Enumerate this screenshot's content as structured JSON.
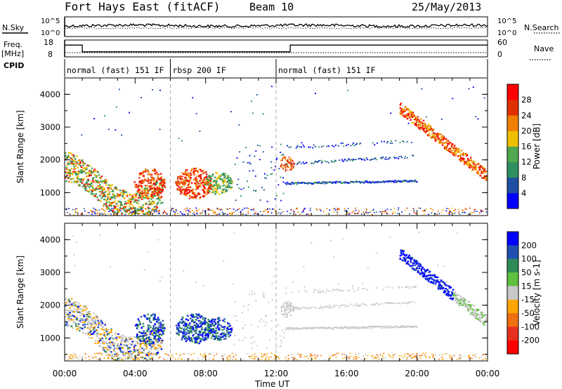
{
  "header": {
    "station": "Fort Hays East (fitACF)",
    "beam": "Beam 10",
    "date": "25/May/2013"
  },
  "strip": {
    "nsky_label": "N.Sky",
    "nsearch_label": "N.Search",
    "freq_label": "Freq.",
    "freq_unit": "[MHz]",
    "nave_label": "Nave",
    "cpid_label": "CPID",
    "nsky_ticks": [
      "10^5",
      "10^0"
    ],
    "nsearch_ticks": [
      "10^5",
      "10^0"
    ],
    "freq_ticks": [
      "18",
      "8"
    ],
    "nave_ticks": [
      "60",
      "0"
    ],
    "cpid_segments": [
      {
        "label": "normal (fast) 151 IF",
        "start_h": 0,
        "end_h": 6
      },
      {
        "label": "rbsp 200 IF",
        "start_h": 6,
        "end_h": 12
      },
      {
        "label": "normal (fast) 151 IF",
        "start_h": 12,
        "end_h": 24
      }
    ],
    "freq_steps_h": [
      0,
      1.0,
      12.8,
      24
    ],
    "freq_levels_mhz": [
      15,
      11,
      15
    ]
  },
  "chart_data": [
    {
      "type": "heatmap",
      "name": "power",
      "ylabel": "Slant Range [km]",
      "yticks": [
        "1000",
        "2000",
        "3000",
        "4000"
      ],
      "colorbar_label": "Power [dB]",
      "colorbar_ticks": [
        "4",
        "8",
        "12",
        "16",
        "20",
        "24",
        "28"
      ],
      "colors": [
        "#0000ff",
        "#1e4fa0",
        "#2f8f60",
        "#4fa84f",
        "#f0c000",
        "#f08000",
        "#e03000",
        "#ff0000"
      ]
    },
    {
      "type": "heatmap",
      "name": "velocity",
      "ylabel": "Slant Range [km]",
      "yticks": [
        "1000",
        "2000",
        "3000",
        "4000"
      ],
      "colorbar_label": "Velocity [m s-1]",
      "colorbar_ticks": [
        "200",
        "100",
        "50",
        "15",
        "-15",
        "-50",
        "-100",
        "-200"
      ],
      "colors": [
        "#0000ff",
        "#1f4fb0",
        "#2e8b57",
        "#5fc03f",
        "#c8c8c8",
        "#ffa500",
        "#f07010",
        "#e83020",
        "#ff0000"
      ]
    }
  ],
  "xaxis": {
    "title": "Time UT",
    "ticks": [
      "00:00",
      "04:00",
      "08:00",
      "12:00",
      "16:00",
      "20:00",
      "00:00"
    ]
  }
}
